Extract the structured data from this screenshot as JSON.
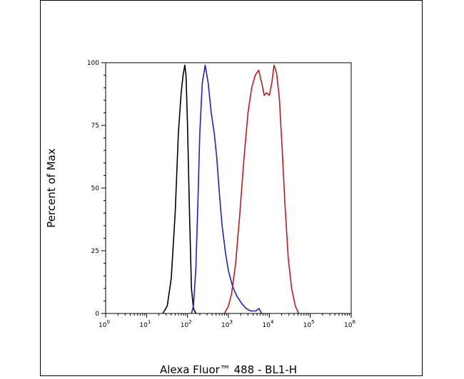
{
  "chart_data": {
    "type": "line",
    "title": "",
    "xlabel": "Alexa Fluor™ 488 - BL1-H",
    "ylabel": "Percent of Max",
    "xscale": "log",
    "xlim": [
      1,
      1000000
    ],
    "ylim": [
      0,
      100
    ],
    "x_ticks": [
      {
        "value": 1,
        "base": "10",
        "exp": "0"
      },
      {
        "value": 10,
        "base": "10",
        "exp": "1"
      },
      {
        "value": 100,
        "base": "10",
        "exp": "2"
      },
      {
        "value": 1000,
        "base": "10",
        "exp": "3"
      },
      {
        "value": 10000,
        "base": "10",
        "exp": "4"
      },
      {
        "value": 100000,
        "base": "10",
        "exp": "5"
      },
      {
        "value": 1000000,
        "base": "10",
        "exp": "6"
      }
    ],
    "y_ticks": [
      {
        "value": 0,
        "label": "0"
      },
      {
        "value": 25,
        "label": "25"
      },
      {
        "value": 50,
        "label": "50"
      },
      {
        "value": 75,
        "label": "75"
      },
      {
        "value": 100,
        "label": "100"
      }
    ],
    "grid": false,
    "legend": "none",
    "series": [
      {
        "color": "#000000",
        "points": [
          [
            25,
            0
          ],
          [
            32,
            3
          ],
          [
            40,
            14
          ],
          [
            50,
            40
          ],
          [
            60,
            72
          ],
          [
            70,
            88
          ],
          [
            78,
            95
          ],
          [
            86,
            99
          ],
          [
            92,
            95
          ],
          [
            100,
            75
          ],
          [
            112,
            40
          ],
          [
            125,
            10
          ],
          [
            140,
            2
          ],
          [
            160,
            0
          ]
        ]
      },
      {
        "color": "#1f1fcc",
        "points": [
          [
            125,
            0
          ],
          [
            140,
            3
          ],
          [
            160,
            18
          ],
          [
            180,
            45
          ],
          [
            200,
            72
          ],
          [
            230,
            92
          ],
          [
            270,
            99
          ],
          [
            320,
            92
          ],
          [
            380,
            80
          ],
          [
            450,
            72
          ],
          [
            520,
            62
          ],
          [
            600,
            48
          ],
          [
            700,
            35
          ],
          [
            850,
            24
          ],
          [
            1000,
            17
          ],
          [
            1250,
            11
          ],
          [
            1600,
            7
          ],
          [
            2100,
            4
          ],
          [
            2700,
            2
          ],
          [
            3500,
            1
          ],
          [
            4700,
            1
          ],
          [
            5600,
            2
          ],
          [
            6500,
            0
          ]
        ]
      },
      {
        "color": "#c0191b",
        "points": [
          [
            800,
            0
          ],
          [
            1000,
            3
          ],
          [
            1200,
            8
          ],
          [
            1500,
            20
          ],
          [
            1900,
            40
          ],
          [
            2400,
            62
          ],
          [
            3000,
            80
          ],
          [
            3700,
            90
          ],
          [
            4500,
            95
          ],
          [
            5500,
            97
          ],
          [
            6500,
            92
          ],
          [
            7500,
            87
          ],
          [
            8500,
            88
          ],
          [
            10000,
            87
          ],
          [
            11500,
            92
          ],
          [
            13000,
            99
          ],
          [
            15000,
            96
          ],
          [
            17500,
            86
          ],
          [
            20500,
            66
          ],
          [
            24000,
            44
          ],
          [
            29000,
            22
          ],
          [
            35000,
            10
          ],
          [
            43000,
            3
          ],
          [
            52000,
            0
          ]
        ]
      }
    ]
  }
}
